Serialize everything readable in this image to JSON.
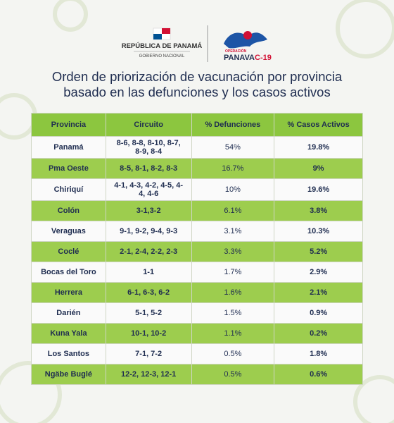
{
  "header": {
    "left_logo": {
      "line1": "REPÚBLICA DE PANAMÁ",
      "line2": "GOBIERNO NACIONAL"
    },
    "right_logo": {
      "small": "OPERACIÓN",
      "name_main": "PANAVA",
      "name_accent": "C-19"
    }
  },
  "title": [
    "Orden de priorización de vacunación por provincia",
    "basado en las defunciones y los casos activos"
  ],
  "table": {
    "columns": [
      "Provincia",
      "Circuito",
      "% Defunciones",
      "% Casos Activos"
    ],
    "rows": [
      [
        "Panamá",
        "8-6, 8-8, 8-10, 8-7, 8-9, 8-4",
        "54%",
        "19.8%"
      ],
      [
        "Pma Oeste",
        "8-5, 8-1, 8-2, 8-3",
        "16.7%",
        "9%"
      ],
      [
        "Chiriquí",
        "4-1, 4-3, 4-2, 4-5, 4-4, 4-6",
        "10%",
        "19.6%"
      ],
      [
        "Colón",
        "3-1,3-2",
        "6.1%",
        "3.8%"
      ],
      [
        "Veraguas",
        "9-1, 9-2, 9-4, 9-3",
        "3.1%",
        "10.3%"
      ],
      [
        "Coclé",
        "2-1, 2-4, 2-2, 2-3",
        "3.3%",
        "5.2%"
      ],
      [
        "Bocas del Toro",
        "1-1",
        "1.7%",
        "2.9%"
      ],
      [
        "Herrera",
        "6-1, 6-3, 6-2",
        "1.6%",
        "2.1%"
      ],
      [
        "Darién",
        "5-1, 5-2",
        "1.5%",
        "0.9%"
      ],
      [
        "Kuna Yala",
        "10-1, 10-2",
        "1.1%",
        "0.2%"
      ],
      [
        "Los Santos",
        "7-1, 7-2",
        "0.5%",
        "1.8%"
      ],
      [
        "Ngäbe Buglé",
        "12-2, 12-3, 12-1",
        "0.5%",
        "0.6%"
      ]
    ]
  }
}
